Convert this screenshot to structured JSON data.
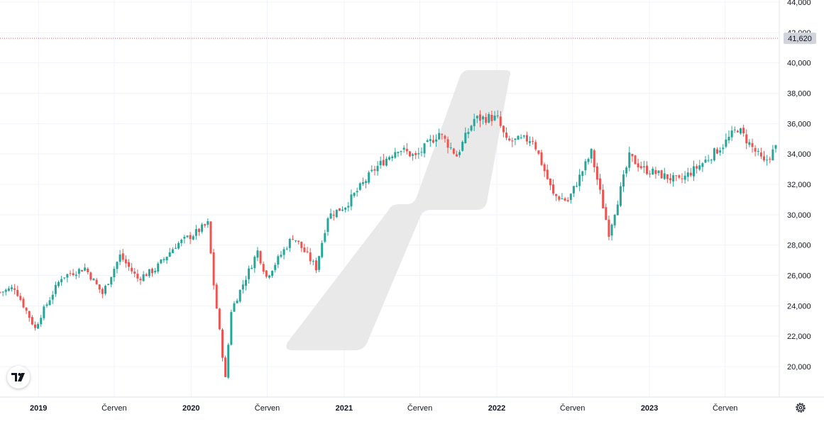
{
  "colors": {
    "up": "#26a69a",
    "down": "#ef5350",
    "grid": "#f0f3fa",
    "axis_text": "#131722",
    "price_line": "#ef5350",
    "price_label_bg": "#d1d4dc",
    "watermark": "#e9e9e9"
  },
  "icons": {
    "logo": "tradingview-logo-icon",
    "settings": "gear-icon"
  },
  "current_price": {
    "value": 41620,
    "label": "41,620"
  },
  "chart_data": {
    "type": "candlestick",
    "interval": "weekly",
    "y_axis": {
      "min": 18600,
      "max": 44000,
      "ticks": [
        20000,
        22000,
        24000,
        26000,
        28000,
        30000,
        32000,
        34000,
        36000,
        38000,
        40000,
        42000,
        44000
      ],
      "tick_labels": [
        "20,000",
        "22,000",
        "24,000",
        "26,000",
        "28,000",
        "30,000",
        "32,000",
        "34,000",
        "36,000",
        "38,000",
        "40,000",
        "42,000",
        "44,000"
      ]
    },
    "x_axis": {
      "start": "2018-10-01",
      "end": "2023-10-30",
      "ticks": [
        {
          "date": "2019-01-01",
          "label": "2019",
          "bold": true
        },
        {
          "date": "2019-07-01",
          "label": "Červen",
          "bold": false
        },
        {
          "date": "2020-01-01",
          "label": "2020",
          "bold": true
        },
        {
          "date": "2020-07-01",
          "label": "Červen",
          "bold": false
        },
        {
          "date": "2021-01-01",
          "label": "2021",
          "bold": true
        },
        {
          "date": "2021-07-01",
          "label": "Červen",
          "bold": false
        },
        {
          "date": "2022-01-01",
          "label": "2022",
          "bold": true
        },
        {
          "date": "2022-07-01",
          "label": "Červen",
          "bold": false
        },
        {
          "date": "2023-01-01",
          "label": "2023",
          "bold": true
        },
        {
          "date": "2023-07-01",
          "label": "Červen",
          "bold": false
        }
      ]
    },
    "grid": true,
    "weekly_close_anchors": [
      [
        "2018-10-01",
        24900
      ],
      [
        "2018-11-05",
        25200
      ],
      [
        "2018-12-24",
        22500
      ],
      [
        "2019-01-07",
        23400
      ],
      [
        "2019-02-25",
        25900
      ],
      [
        "2019-04-22",
        26500
      ],
      [
        "2019-06-03",
        24800
      ],
      [
        "2019-07-15",
        27300
      ],
      [
        "2019-08-26",
        25800
      ],
      [
        "2019-10-07",
        26400
      ],
      [
        "2019-11-25",
        28000
      ],
      [
        "2020-01-06",
        28700
      ],
      [
        "2020-02-10",
        29400
      ],
      [
        "2020-02-24",
        25400
      ],
      [
        "2020-03-23",
        19200
      ],
      [
        "2020-04-06",
        23700
      ],
      [
        "2020-06-08",
        27600
      ],
      [
        "2020-06-29",
        25900
      ],
      [
        "2020-09-01",
        28600
      ],
      [
        "2020-10-26",
        26500
      ],
      [
        "2020-11-23",
        29900
      ],
      [
        "2021-01-04",
        30600
      ],
      [
        "2021-03-15",
        33000
      ],
      [
        "2021-05-10",
        34400
      ],
      [
        "2021-06-21",
        33800
      ],
      [
        "2021-08-16",
        35400
      ],
      [
        "2021-09-27",
        33900
      ],
      [
        "2021-11-08",
        36300
      ],
      [
        "2021-12-20",
        36400
      ],
      [
        "2022-01-03",
        36300
      ],
      [
        "2022-01-24",
        34800
      ],
      [
        "2022-03-28",
        35000
      ],
      [
        "2022-05-16",
        31300
      ],
      [
        "2022-06-20",
        30900
      ],
      [
        "2022-08-15",
        34100
      ],
      [
        "2022-09-26",
        28800
      ],
      [
        "2022-11-14",
        33800
      ],
      [
        "2022-12-19",
        33000
      ],
      [
        "2023-03-13",
        32200
      ],
      [
        "2023-05-08",
        33400
      ],
      [
        "2023-06-26",
        34600
      ],
      [
        "2023-07-31",
        35700
      ],
      [
        "2023-10-02",
        33400
      ],
      [
        "2023-10-30",
        34400
      ]
    ]
  }
}
